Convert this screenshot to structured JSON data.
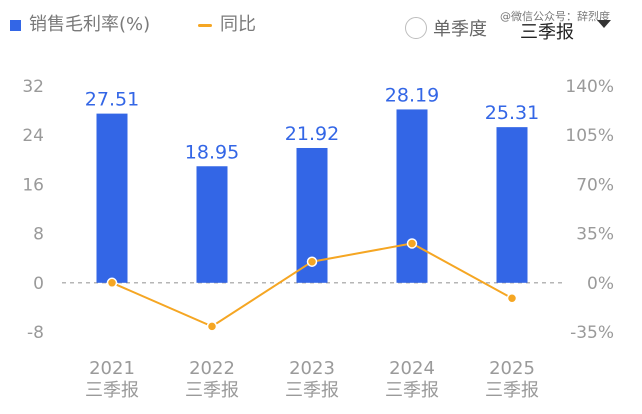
{
  "legend": {
    "bar_label": "销售毛利率(%)",
    "line_label": "同比"
  },
  "controls": {
    "radio_label": "单季度",
    "dropdown_value": "三季报",
    "watermark": "@微信公众号：辞烈度"
  },
  "colors": {
    "bar": "#3366E6",
    "line": "#F5A623",
    "value_label": "#3366E6",
    "axis_text": "#9a9a9a"
  },
  "chart_data": {
    "type": "bar",
    "categories": [
      "2021",
      "2022",
      "2023",
      "2024",
      "2025"
    ],
    "category_sublabels": [
      "三季报",
      "三季报",
      "三季报",
      "三季报",
      "三季报"
    ],
    "series": [
      {
        "values": [
          27.51,
          18.95,
          21.92,
          28.19,
          25.31
        ],
        "axis": "left",
        "type": "bar"
      },
      {
        "values": [
          0,
          -31,
          15,
          28,
          -11
        ],
        "axis": "right",
        "type": "line"
      }
    ],
    "data_labels": [
      "27.51",
      "18.95",
      "21.92",
      "28.19",
      "25.31"
    ],
    "left_axis": {
      "ticks": [
        32,
        24,
        16,
        8,
        0,
        -8
      ],
      "ylim": [
        -8,
        32
      ]
    },
    "right_axis": {
      "ticks": [
        "140%",
        "105%",
        "70%",
        "35%",
        "0%",
        "-35%"
      ],
      "values": [
        140,
        105,
        70,
        35,
        0,
        -35
      ],
      "ylim": [
        -35,
        140
      ]
    },
    "zero_line": "dashed",
    "grid": false
  }
}
